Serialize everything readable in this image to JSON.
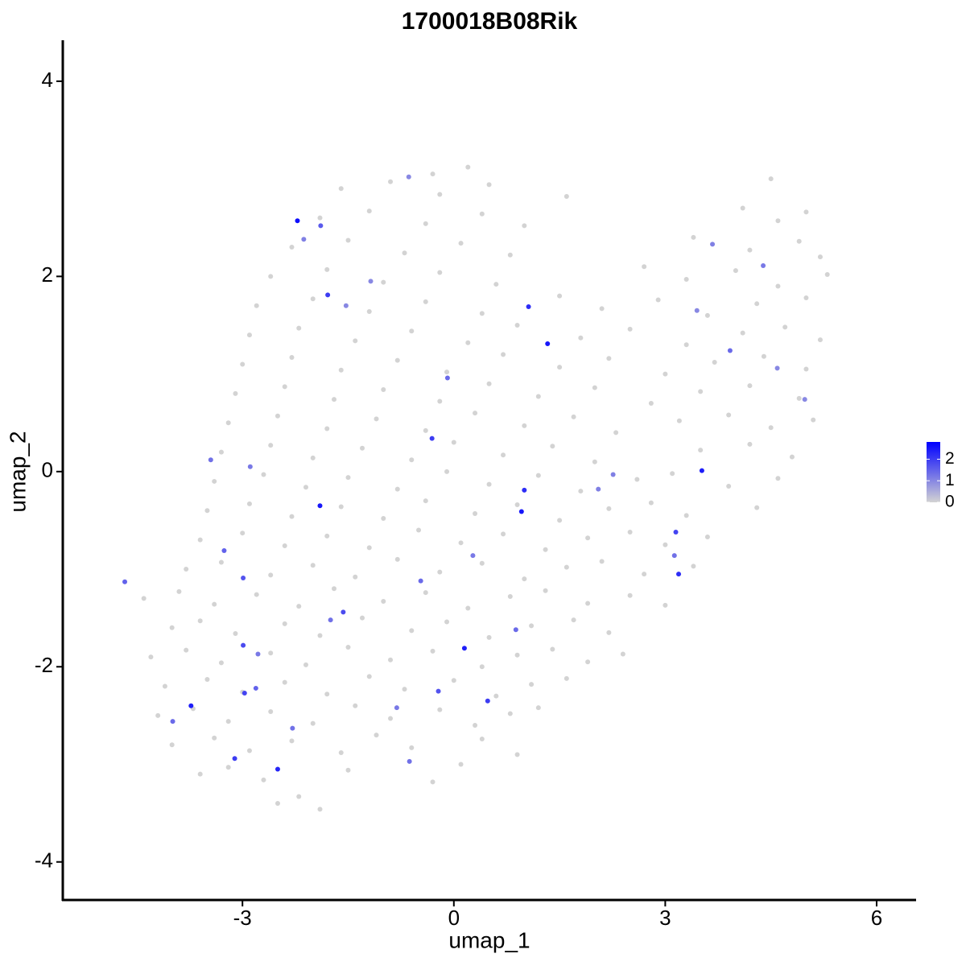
{
  "chart_data": {
    "type": "scatter",
    "title": "1700018B08Rik",
    "xlabel": "umap_1",
    "ylabel": "umap_2",
    "xlim": [
      -5.55,
      6.56
    ],
    "ylim": [
      -4.39,
      4.42
    ],
    "xticks": [
      -3,
      0,
      3,
      6
    ],
    "yticks": [
      -4,
      -2,
      0,
      2,
      4
    ],
    "grid": false,
    "colorbar": {
      "lim": [
        0,
        2.8
      ],
      "ticks": [
        0,
        1,
        2
      ],
      "low_color": "#d3d3d3",
      "high_color": "#0000ff"
    },
    "series": [
      {
        "color": "#d3d3d3",
        "x": [
          -2.5,
          -2.2,
          -1.9,
          -3.6,
          -3.2,
          -2.7,
          -1.5,
          -0.3,
          0.1,
          -4.0,
          -3.4,
          -2.9,
          -2.3,
          -1.6,
          -1.1,
          -0.6,
          0.4,
          0.9,
          -4.2,
          -3.7,
          -3.2,
          -2.6,
          -2.0,
          -1.4,
          -0.9,
          -0.2,
          0.3,
          0.8,
          1.2,
          -4.1,
          -3.5,
          -3.0,
          -2.4,
          -1.8,
          -1.2,
          -0.7,
          0.0,
          0.6,
          1.1,
          1.6,
          -4.3,
          -3.8,
          -3.3,
          -2.6,
          -2.1,
          -1.5,
          -0.9,
          -0.3,
          0.4,
          0.9,
          1.4,
          1.9,
          2.4,
          -4.0,
          -3.6,
          -3.1,
          -2.4,
          -1.9,
          -1.3,
          -0.6,
          -0.1,
          0.5,
          1.1,
          1.7,
          2.2,
          -4.4,
          -3.9,
          -3.4,
          -2.8,
          -2.2,
          -1.7,
          -1.0,
          -0.4,
          0.2,
          0.8,
          1.3,
          1.9,
          2.5,
          3.0,
          -3.8,
          -3.3,
          -2.6,
          -2.0,
          -1.4,
          -0.8,
          -0.2,
          0.4,
          1.0,
          1.6,
          2.1,
          2.7,
          3.4,
          -3.6,
          -3.0,
          -2.4,
          -1.8,
          -1.2,
          -0.5,
          0.1,
          0.7,
          1.3,
          1.9,
          2.5,
          3.0,
          3.6,
          -3.5,
          -2.9,
          -2.3,
          -1.6,
          -1.0,
          -0.4,
          0.3,
          0.9,
          1.5,
          2.2,
          2.8,
          3.3,
          4.3,
          -3.4,
          -2.7,
          -2.1,
          -1.5,
          -0.8,
          -0.1,
          0.5,
          1.2,
          1.8,
          2.6,
          3.1,
          3.9,
          4.6,
          -3.3,
          -2.6,
          -2.0,
          -1.3,
          -0.6,
          0.0,
          0.7,
          1.4,
          2.0,
          3.5,
          4.2,
          4.8,
          -3.2,
          -2.5,
          -1.8,
          -1.1,
          -0.4,
          0.3,
          1.0,
          1.7,
          2.3,
          3.2,
          3.9,
          4.5,
          5.1,
          -3.1,
          -2.4,
          -1.7,
          -1.0,
          -0.2,
          0.5,
          1.2,
          2.0,
          2.8,
          3.5,
          4.2,
          4.9,
          -3.0,
          -2.3,
          -1.6,
          -0.8,
          -0.1,
          0.7,
          1.5,
          2.2,
          3.0,
          3.7,
          4.4,
          5.0,
          -2.9,
          -2.2,
          -1.4,
          -0.6,
          0.2,
          0.9,
          1.8,
          2.5,
          3.3,
          4.1,
          4.7,
          5.2,
          -2.8,
          -2.0,
          -1.2,
          -0.4,
          0.4,
          1.5,
          2.1,
          2.9,
          3.6,
          4.3,
          5.0,
          -2.6,
          -1.8,
          -1.0,
          -0.2,
          0.6,
          2.7,
          3.3,
          4.0,
          4.6,
          5.3,
          -2.3,
          -1.5,
          -0.7,
          0.1,
          0.8,
          3.4,
          4.2,
          4.9,
          5.2,
          -1.9,
          -1.2,
          -0.4,
          0.4,
          1.0,
          4.1,
          4.6,
          5.0,
          -1.6,
          -0.9,
          -0.2,
          0.5,
          1.6,
          4.5,
          -0.3,
          0.2
        ],
        "values": [
          -3.4,
          -3.33,
          -3.46,
          -3.1,
          -3.03,
          -3.16,
          -3.06,
          -3.18,
          -3.0,
          -2.8,
          -2.73,
          -2.86,
          -2.76,
          -2.88,
          -2.7,
          -2.83,
          -2.74,
          -2.9,
          -2.5,
          -2.43,
          -2.56,
          -2.46,
          -2.58,
          -2.4,
          -2.53,
          -2.44,
          -2.6,
          -2.48,
          -2.42,
          -2.2,
          -2.13,
          -2.26,
          -2.16,
          -2.28,
          -2.1,
          -2.23,
          -2.14,
          -2.3,
          -2.18,
          -2.12,
          -1.9,
          -1.83,
          -1.96,
          -1.86,
          -1.98,
          -1.8,
          -1.93,
          -1.84,
          -2.0,
          -1.88,
          -1.82,
          -1.95,
          -1.87,
          -1.6,
          -1.53,
          -1.66,
          -1.56,
          -1.68,
          -1.5,
          -1.63,
          -1.54,
          -1.7,
          -1.58,
          -1.52,
          -1.65,
          -1.3,
          -1.23,
          -1.36,
          -1.26,
          -1.38,
          -1.2,
          -1.33,
          -1.24,
          -1.4,
          -1.28,
          -1.22,
          -1.35,
          -1.27,
          -1.37,
          -1.0,
          -0.93,
          -1.06,
          -0.96,
          -1.08,
          -0.9,
          -1.03,
          -0.94,
          -1.1,
          -0.98,
          -0.92,
          -1.05,
          -0.97,
          -0.7,
          -0.63,
          -0.76,
          -0.66,
          -0.78,
          -0.6,
          -0.73,
          -0.64,
          -0.8,
          -0.68,
          -0.62,
          -0.75,
          -0.67,
          -0.4,
          -0.33,
          -0.46,
          -0.36,
          -0.48,
          -0.3,
          -0.43,
          -0.34,
          -0.5,
          -0.38,
          -0.32,
          -0.45,
          -0.37,
          -0.1,
          -0.03,
          -0.16,
          -0.06,
          -0.18,
          0.0,
          -0.13,
          -0.04,
          -0.2,
          -0.08,
          -0.02,
          -0.15,
          -0.07,
          0.2,
          0.27,
          0.14,
          0.24,
          0.12,
          0.3,
          0.17,
          0.26,
          0.1,
          0.22,
          0.28,
          0.15,
          0.5,
          0.57,
          0.44,
          0.54,
          0.42,
          0.6,
          0.47,
          0.56,
          0.4,
          0.52,
          0.58,
          0.45,
          0.53,
          0.8,
          0.87,
          0.74,
          0.84,
          0.72,
          0.9,
          0.77,
          0.86,
          0.7,
          0.82,
          0.88,
          0.75,
          1.1,
          1.17,
          1.04,
          1.14,
          1.02,
          1.2,
          1.07,
          1.16,
          1.0,
          1.12,
          1.18,
          1.05,
          1.4,
          1.47,
          1.34,
          1.44,
          1.32,
          1.5,
          1.37,
          1.46,
          1.3,
          1.42,
          1.48,
          1.35,
          1.7,
          1.77,
          1.64,
          1.74,
          1.62,
          1.8,
          1.67,
          1.76,
          1.6,
          1.72,
          1.78,
          2.0,
          2.07,
          1.94,
          2.04,
          1.92,
          2.1,
          1.97,
          2.06,
          1.9,
          2.02,
          2.3,
          2.37,
          2.24,
          2.34,
          2.22,
          2.4,
          2.27,
          2.36,
          2.2,
          2.6,
          2.67,
          2.54,
          2.64,
          2.52,
          2.7,
          2.57,
          2.66,
          2.9,
          2.97,
          2.84,
          2.94,
          2.82,
          3.0,
          3.05,
          3.12
        ]
      },
      {
        "x": [
          -4.67,
          -2.22,
          -1.89,
          -1.79,
          -1.9,
          1.06,
          1.33,
          -0.31,
          1.0,
          0.96,
          3.52,
          3.15,
          3.19,
          0.15,
          -1.57,
          -2.99,
          -2.97,
          -3.73,
          -3.11,
          -2.5,
          -3.99,
          -0.22,
          0.48,
          -2.99,
          -3.26,
          -2.89,
          -3.45,
          -0.09,
          -1.18,
          -1.53,
          3.92,
          4.39,
          3.67,
          4.98,
          3.13,
          2.05,
          -0.47,
          0.88,
          -0.63,
          -1.75,
          -2.81,
          -2.29,
          -2.78,
          -0.64,
          -2.13,
          4.59,
          3.45,
          -0.81,
          2.26,
          0.27
        ],
        "values": [
          -1.13,
          2.57,
          2.52,
          1.81,
          -0.35,
          1.69,
          1.31,
          0.34,
          -0.19,
          -0.41,
          0.01,
          -0.62,
          -1.05,
          -1.81,
          -1.44,
          -1.78,
          -2.27,
          -2.4,
          -2.94,
          -3.05,
          -2.56,
          -2.25,
          -2.35,
          -1.09,
          -0.81,
          0.05,
          0.12,
          0.96,
          1.95,
          1.7,
          1.24,
          2.11,
          2.33,
          0.74,
          -0.86,
          -0.18,
          -1.12,
          -1.62,
          -2.97,
          -1.52,
          -2.22,
          -2.63,
          -1.87,
          3.02,
          2.38,
          1.06,
          1.65,
          -2.42,
          -0.03,
          -0.86
        ],
        "expression": [
          1.5,
          2.6,
          1.6,
          2.0,
          2.5,
          2.2,
          2.5,
          2.0,
          2.2,
          2.5,
          2.4,
          1.9,
          2.2,
          2.4,
          1.8,
          1.8,
          1.9,
          2.4,
          2.0,
          2.3,
          1.4,
          1.7,
          2.0,
          1.7,
          1.5,
          1.2,
          1.3,
          1.4,
          1.0,
          1.0,
          1.4,
          1.2,
          1.1,
          1.0,
          1.3,
          1.1,
          1.4,
          1.4,
          1.3,
          1.3,
          1.5,
          1.3,
          1.2,
          1.0,
          1.1,
          1.0,
          1.0,
          1.2,
          1.1,
          1.2
        ]
      }
    ]
  }
}
